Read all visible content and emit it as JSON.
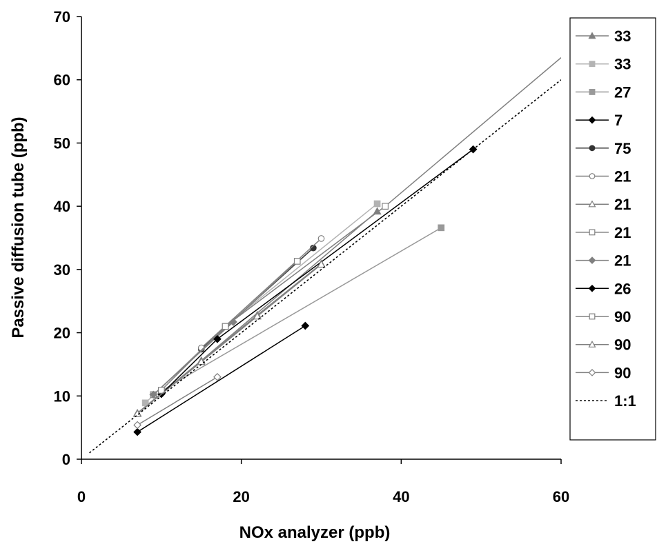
{
  "chart_data": {
    "type": "line",
    "title": "",
    "xlabel": "NOx analyzer (ppb)",
    "ylabel": "Passive diffusion tube (ppb)",
    "xlim": [
      0,
      60
    ],
    "ylim": [
      0,
      70
    ],
    "xticks": [
      "0",
      "20",
      "40",
      "60"
    ],
    "yticks": [
      "0",
      "10",
      "20",
      "30",
      "40",
      "50",
      "60",
      "70"
    ],
    "grid": false,
    "legend_position": "right",
    "series": [
      {
        "name": "33",
        "color": "#7f7f7f",
        "marker": "triangle",
        "filled": true,
        "points": [
          [
            7,
            7.3
          ],
          [
            15,
            15.6
          ],
          [
            37,
            39.2
          ]
        ]
      },
      {
        "name": "33",
        "color": "#b3b3b3",
        "marker": "square",
        "filled": true,
        "points": [
          [
            8,
            8.9
          ],
          [
            18,
            21.0
          ],
          [
            37,
            40.4
          ]
        ]
      },
      {
        "name": "27",
        "color": "#999999",
        "marker": "square",
        "filled": true,
        "points": [
          [
            10,
            10.8
          ],
          [
            45,
            36.6
          ]
        ]
      },
      {
        "name": "7",
        "color": "#000000",
        "marker": "diamond",
        "filled": true,
        "points": [
          [
            7,
            4.3
          ],
          [
            28,
            21.1
          ]
        ]
      },
      {
        "name": "75",
        "color": "#333333",
        "marker": "circle",
        "filled": true,
        "points": [
          [
            15,
            17.4
          ],
          [
            29,
            33.4
          ]
        ]
      },
      {
        "name": "21",
        "color": "#808080",
        "marker": "circle",
        "filled": false,
        "points": [
          [
            15,
            17.6
          ],
          [
            30,
            34.9
          ]
        ]
      },
      {
        "name": "21",
        "color": "#808080",
        "marker": "triangle",
        "filled": false,
        "points": [
          [
            7,
            7.2
          ],
          [
            22,
            22.8
          ],
          [
            30,
            30.9
          ]
        ]
      },
      {
        "name": "21",
        "color": "#808080",
        "marker": "square",
        "filled": false,
        "points": [
          [
            9,
            10.2
          ],
          [
            27,
            31.3
          ]
        ]
      },
      {
        "name": "21",
        "color": "#808080",
        "marker": "diamond",
        "filled": true,
        "points": [
          [
            9,
            10.2
          ],
          [
            19,
            21.7
          ]
        ]
      },
      {
        "name": "26",
        "color": "#000000",
        "marker": "diamond",
        "filled": true,
        "points": [
          [
            10,
            10.3
          ],
          [
            17,
            19.0
          ],
          [
            49,
            49.0
          ]
        ]
      },
      {
        "name": "90",
        "color": "#808080",
        "marker": "square",
        "filled": false,
        "points": [
          [
            10,
            10.9
          ],
          [
            18,
            21.0
          ],
          [
            38,
            40.0
          ],
          [
            60,
            63.5
          ]
        ]
      },
      {
        "name": "90",
        "color": "#808080",
        "marker": "triangle",
        "filled": false,
        "points": [
          [
            7,
            7.2
          ],
          [
            15,
            15.4
          ],
          [
            22,
            22.6
          ],
          [
            30,
            30.8
          ]
        ]
      },
      {
        "name": "90",
        "color": "#808080",
        "marker": "diamond",
        "filled": false,
        "points": [
          [
            7,
            5.4
          ],
          [
            17,
            13.0
          ]
        ]
      },
      {
        "name": "1:1",
        "color": "#000000",
        "marker": "none",
        "dashed": true,
        "points": [
          [
            1,
            1
          ],
          [
            60,
            60
          ]
        ]
      }
    ]
  }
}
